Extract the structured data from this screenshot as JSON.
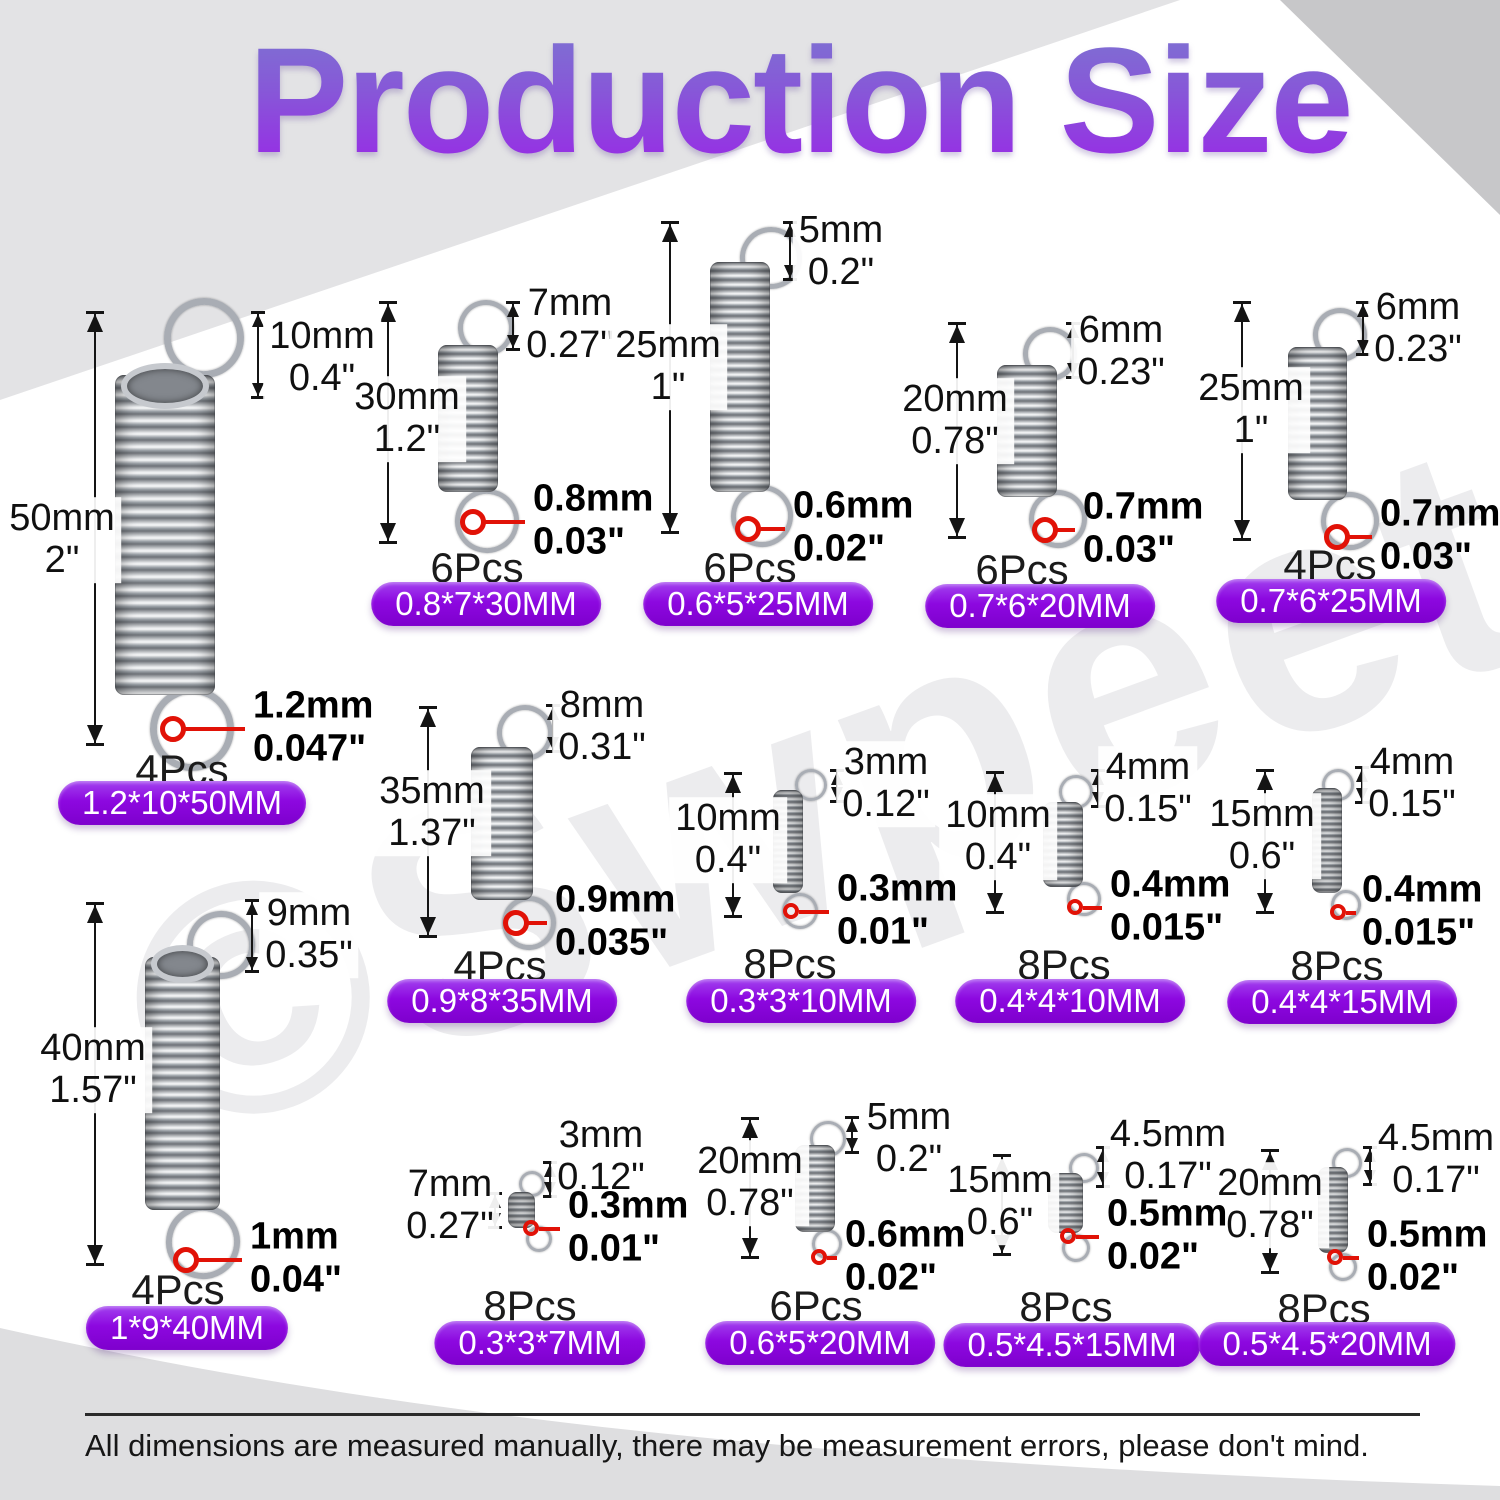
{
  "title": "Production Size",
  "watermark": "©Swpeet",
  "disclaimer": "All dimensions are measured manually, there may be measurement errors, please don't mind.",
  "colors": {
    "badge_purple": "#8d08e0",
    "wire_marker_red": "#e11207",
    "title_gradient_top": "#7b79d0",
    "title_gradient_bottom": "#9c1fe9",
    "background_gray": "#e3e3e5"
  },
  "springs": [
    {
      "height_mm": "50mm",
      "height_in": "2\"",
      "loop_mm": "10mm",
      "loop_in": "0.4\"",
      "wire_mm": "1.2mm",
      "wire_in": "0.047\"",
      "count": "4Pcs",
      "spec": "1.2*10*50MM"
    },
    {
      "height_mm": "30mm",
      "height_in": "1.2\"",
      "loop_mm": "7mm",
      "loop_in": "0.27\"",
      "wire_mm": "0.8mm",
      "wire_in": "0.03\"",
      "count": "6Pcs",
      "spec": "0.8*7*30MM"
    },
    {
      "height_mm": "25mm",
      "height_in": "1\"",
      "loop_mm": "5mm",
      "loop_in": "0.2\"",
      "wire_mm": "0.6mm",
      "wire_in": "0.02\"",
      "count": "6Pcs",
      "spec": "0.6*5*25MM"
    },
    {
      "height_mm": "20mm",
      "height_in": "0.78\"",
      "loop_mm": "6mm",
      "loop_in": "0.23\"",
      "wire_mm": "0.7mm",
      "wire_in": "0.03\"",
      "count": "6Pcs",
      "spec": "0.7*6*20MM"
    },
    {
      "height_mm": "25mm",
      "height_in": "1\"",
      "loop_mm": "6mm",
      "loop_in": "0.23\"",
      "wire_mm": "0.7mm",
      "wire_in": "0.03\"",
      "count": "4Pcs",
      "spec": "0.7*6*25MM"
    },
    {
      "height_mm": "40mm",
      "height_in": "1.57\"",
      "loop_mm": "9mm",
      "loop_in": "0.35\"",
      "wire_mm": "1mm",
      "wire_in": "0.04\"",
      "count": "4Pcs",
      "spec": "1*9*40MM"
    },
    {
      "height_mm": "35mm",
      "height_in": "1.37\"",
      "loop_mm": "8mm",
      "loop_in": "0.31\"",
      "wire_mm": "0.9mm",
      "wire_in": "0.035\"",
      "count": "4Pcs",
      "spec": "0.9*8*35MM"
    },
    {
      "height_mm": "10mm",
      "height_in": "0.4\"",
      "loop_mm": "3mm",
      "loop_in": "0.12\"",
      "wire_mm": "0.3mm",
      "wire_in": "0.01\"",
      "count": "8Pcs",
      "spec": "0.3*3*10MM"
    },
    {
      "height_mm": "10mm",
      "height_in": "0.4\"",
      "loop_mm": "4mm",
      "loop_in": "0.15\"",
      "wire_mm": "0.4mm",
      "wire_in": "0.015\"",
      "count": "8Pcs",
      "spec": "0.4*4*10MM"
    },
    {
      "height_mm": "15mm",
      "height_in": "0.6\"",
      "loop_mm": "4mm",
      "loop_in": "0.15\"",
      "wire_mm": "0.4mm",
      "wire_in": "0.015\"",
      "count": "8Pcs",
      "spec": "0.4*4*15MM"
    },
    {
      "height_mm": "7mm",
      "height_in": "0.27\"",
      "loop_mm": "3mm",
      "loop_in": "0.12\"",
      "wire_mm": "0.3mm",
      "wire_in": "0.01\"",
      "count": "8Pcs",
      "spec": "0.3*3*7MM"
    },
    {
      "height_mm": "20mm",
      "height_in": "0.78\"",
      "loop_mm": "5mm",
      "loop_in": "0.2\"",
      "wire_mm": "0.6mm",
      "wire_in": "0.02\"",
      "count": "6Pcs",
      "spec": "0.6*5*20MM"
    },
    {
      "height_mm": "15mm",
      "height_in": "0.6\"",
      "loop_mm": "4.5mm",
      "loop_in": "0.17\"",
      "wire_mm": "0.5mm",
      "wire_in": "0.02\"",
      "count": "8Pcs",
      "spec": "0.5*4.5*15MM"
    },
    {
      "height_mm": "20mm",
      "height_in": "0.78\"",
      "loop_mm": "4.5mm",
      "loop_in": "0.17\"",
      "wire_mm": "0.5mm",
      "wire_in": "0.02\"",
      "count": "8Pcs",
      "spec": "0.5*4.5*20MM"
    }
  ]
}
